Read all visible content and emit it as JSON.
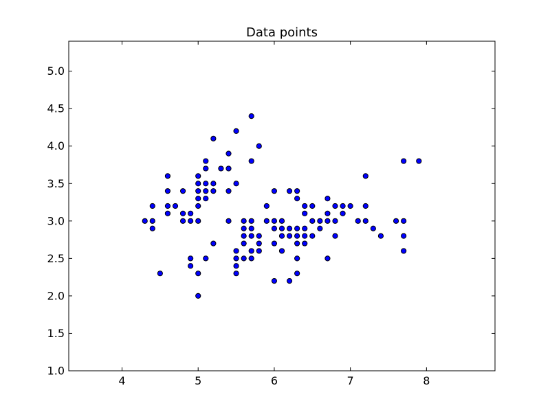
{
  "chart_data": {
    "type": "scatter",
    "title": "Data points",
    "xlabel": "",
    "ylabel": "",
    "xlim": [
      3.3,
      8.9
    ],
    "ylim": [
      1.0,
      5.4
    ],
    "xticks": [
      4,
      5,
      6,
      7,
      8
    ],
    "yticks": [
      1.0,
      1.5,
      2.0,
      2.5,
      3.0,
      3.5,
      4.0,
      4.5,
      5.0
    ],
    "xtick_labels": [
      "4",
      "5",
      "6",
      "7",
      "8"
    ],
    "ytick_labels": [
      "1.0",
      "1.5",
      "2.0",
      "2.5",
      "3.0",
      "3.5",
      "4.0",
      "4.5",
      "5.0"
    ],
    "grid": false,
    "marker_color": "#0000ff",
    "marker_edge_color": "#000000",
    "points": [
      [
        4.3,
        3.0
      ],
      [
        4.4,
        3.2
      ],
      [
        4.4,
        3.0
      ],
      [
        4.4,
        2.9
      ],
      [
        4.5,
        2.3
      ],
      [
        4.6,
        3.6
      ],
      [
        4.6,
        3.4
      ],
      [
        4.6,
        3.2
      ],
      [
        4.6,
        3.1
      ],
      [
        4.7,
        3.2
      ],
      [
        4.8,
        3.4
      ],
      [
        4.8,
        3.1
      ],
      [
        4.8,
        3.0
      ],
      [
        4.9,
        3.1
      ],
      [
        4.9,
        3.0
      ],
      [
        4.9,
        2.5
      ],
      [
        4.9,
        2.4
      ],
      [
        5.0,
        3.6
      ],
      [
        5.0,
        3.5
      ],
      [
        5.0,
        3.4
      ],
      [
        5.0,
        3.3
      ],
      [
        5.0,
        3.2
      ],
      [
        5.0,
        3.0
      ],
      [
        5.0,
        2.3
      ],
      [
        5.0,
        2.0
      ],
      [
        5.1,
        3.8
      ],
      [
        5.1,
        3.7
      ],
      [
        5.1,
        3.5
      ],
      [
        5.1,
        3.4
      ],
      [
        5.1,
        3.3
      ],
      [
        5.1,
        2.5
      ],
      [
        5.2,
        4.1
      ],
      [
        5.2,
        3.5
      ],
      [
        5.2,
        3.4
      ],
      [
        5.2,
        2.7
      ],
      [
        5.3,
        3.7
      ],
      [
        5.4,
        3.9
      ],
      [
        5.4,
        3.7
      ],
      [
        5.4,
        3.4
      ],
      [
        5.4,
        3.0
      ],
      [
        5.5,
        4.2
      ],
      [
        5.5,
        3.5
      ],
      [
        5.5,
        2.6
      ],
      [
        5.5,
        2.5
      ],
      [
        5.5,
        2.4
      ],
      [
        5.5,
        2.3
      ],
      [
        5.6,
        3.0
      ],
      [
        5.6,
        2.9
      ],
      [
        5.6,
        2.8
      ],
      [
        5.6,
        2.7
      ],
      [
        5.6,
        2.5
      ],
      [
        5.7,
        4.4
      ],
      [
        5.7,
        3.8
      ],
      [
        5.7,
        3.0
      ],
      [
        5.7,
        2.9
      ],
      [
        5.7,
        2.8
      ],
      [
        5.7,
        2.6
      ],
      [
        5.7,
        2.5
      ],
      [
        5.8,
        4.0
      ],
      [
        5.8,
        2.8
      ],
      [
        5.8,
        2.7
      ],
      [
        5.8,
        2.6
      ],
      [
        5.9,
        3.2
      ],
      [
        5.9,
        3.0
      ],
      [
        6.0,
        3.4
      ],
      [
        6.0,
        3.0
      ],
      [
        6.0,
        2.9
      ],
      [
        6.0,
        2.7
      ],
      [
        6.0,
        2.2
      ],
      [
        6.1,
        3.0
      ],
      [
        6.1,
        2.9
      ],
      [
        6.1,
        2.8
      ],
      [
        6.1,
        2.6
      ],
      [
        6.2,
        3.4
      ],
      [
        6.2,
        2.9
      ],
      [
        6.2,
        2.8
      ],
      [
        6.2,
        2.2
      ],
      [
        6.3,
        3.4
      ],
      [
        6.3,
        3.3
      ],
      [
        6.3,
        2.9
      ],
      [
        6.3,
        2.8
      ],
      [
        6.3,
        2.7
      ],
      [
        6.3,
        2.5
      ],
      [
        6.3,
        2.3
      ],
      [
        6.4,
        3.2
      ],
      [
        6.4,
        3.1
      ],
      [
        6.4,
        2.9
      ],
      [
        6.4,
        2.8
      ],
      [
        6.4,
        2.7
      ],
      [
        6.5,
        3.2
      ],
      [
        6.5,
        3.0
      ],
      [
        6.5,
        2.8
      ],
      [
        6.6,
        3.0
      ],
      [
        6.6,
        2.9
      ],
      [
        6.7,
        3.3
      ],
      [
        6.7,
        3.1
      ],
      [
        6.7,
        3.0
      ],
      [
        6.7,
        2.5
      ],
      [
        6.8,
        3.2
      ],
      [
        6.8,
        3.0
      ],
      [
        6.8,
        2.8
      ],
      [
        6.9,
        3.2
      ],
      [
        6.9,
        3.1
      ],
      [
        7.0,
        3.2
      ],
      [
        7.1,
        3.0
      ],
      [
        7.2,
        3.6
      ],
      [
        7.2,
        3.2
      ],
      [
        7.2,
        3.0
      ],
      [
        7.3,
        2.9
      ],
      [
        7.4,
        2.8
      ],
      [
        7.6,
        3.0
      ],
      [
        7.7,
        3.8
      ],
      [
        7.7,
        3.0
      ],
      [
        7.7,
        2.8
      ],
      [
        7.7,
        2.6
      ],
      [
        7.9,
        3.8
      ]
    ]
  }
}
